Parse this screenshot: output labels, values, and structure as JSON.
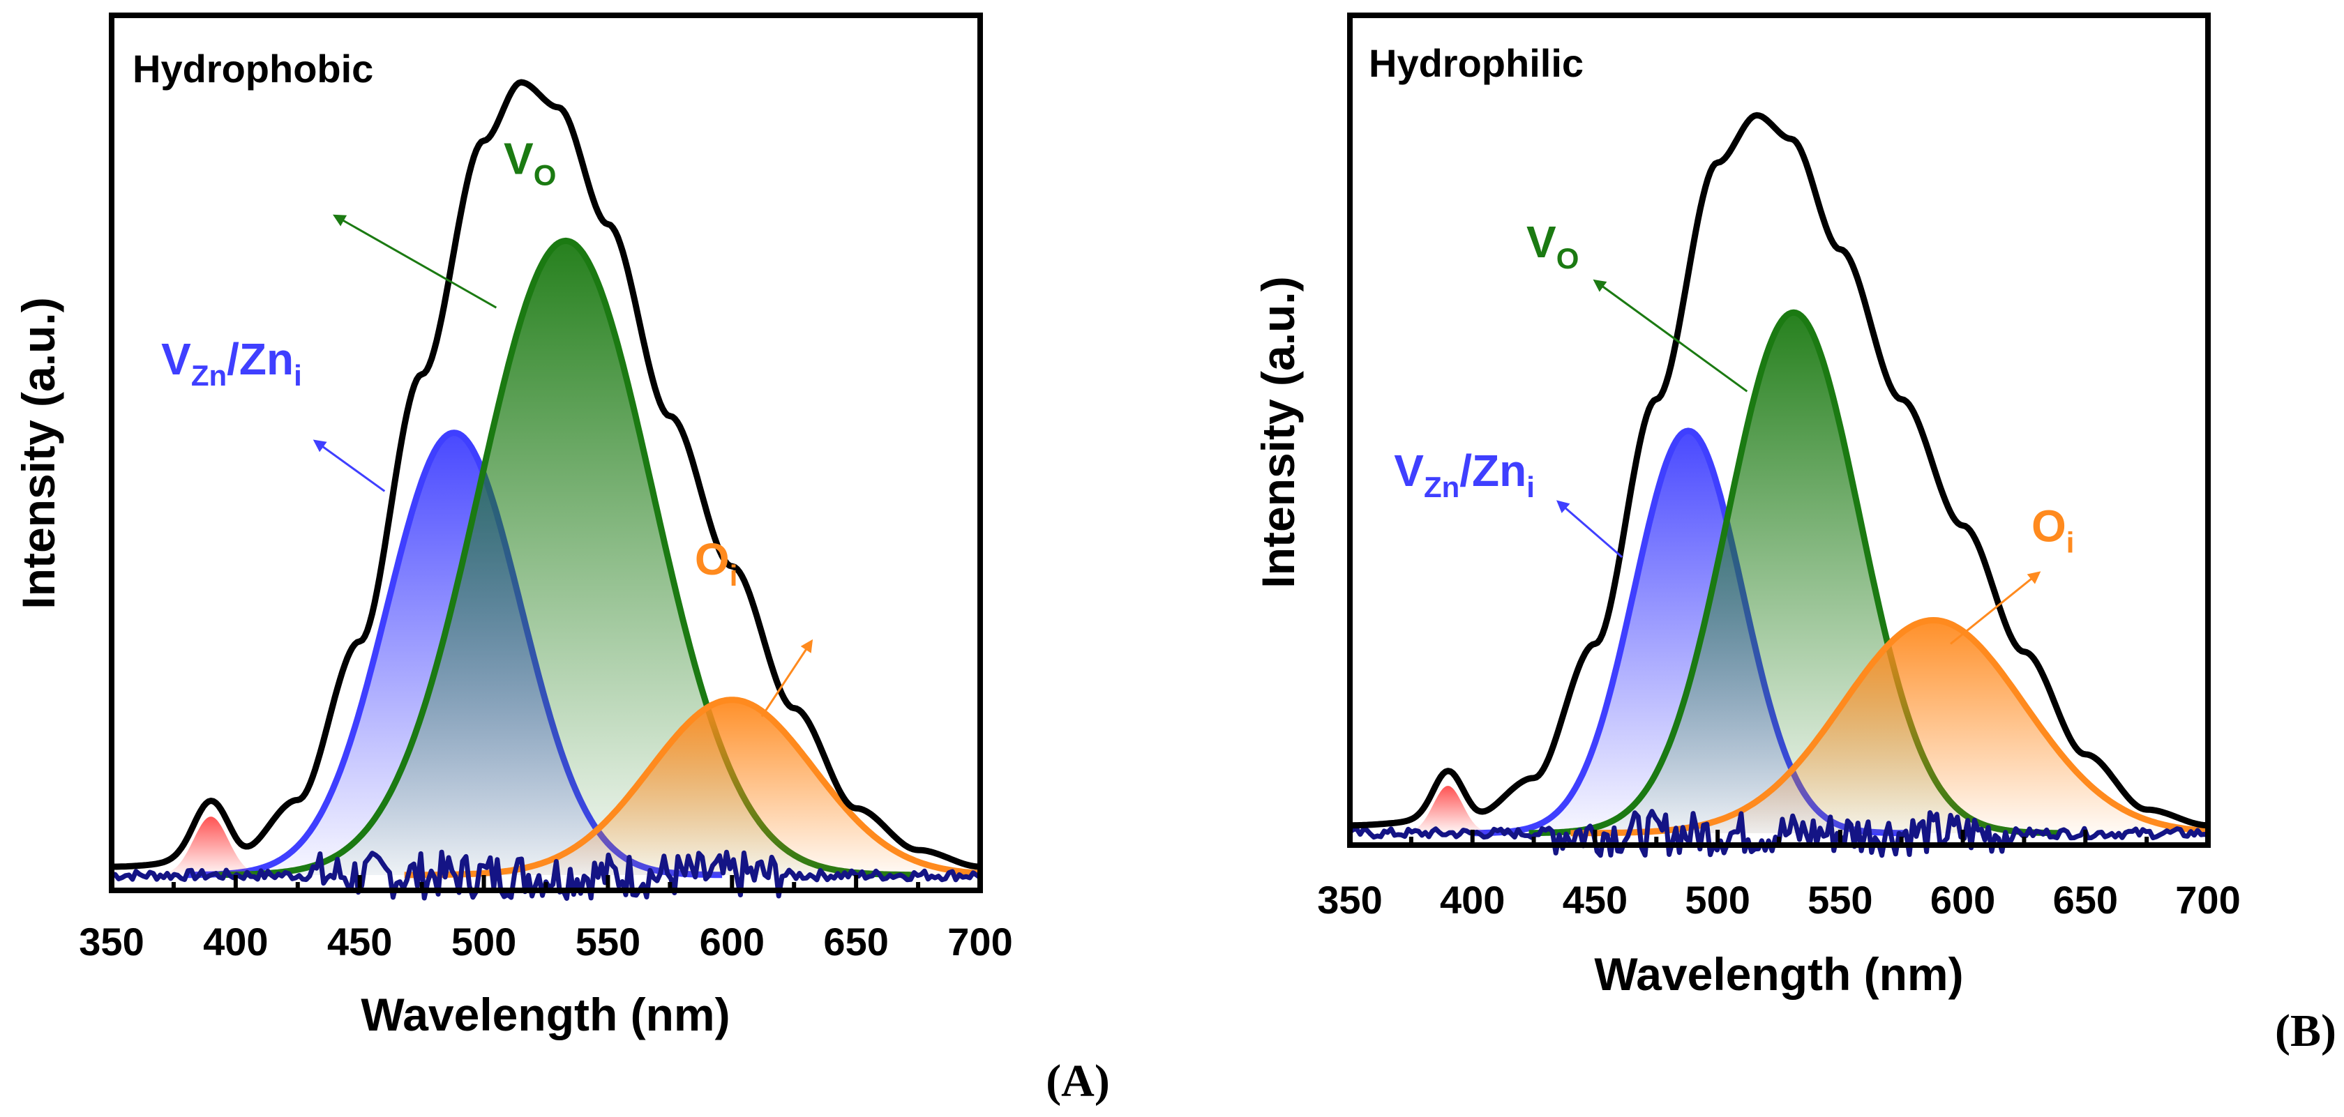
{
  "chart_data": [
    {
      "type": "line",
      "panel_label": "(A)",
      "title": "Hydrophobic",
      "xlabel": "Wavelength (nm)",
      "ylabel": "Intensity (a.u.)",
      "xlim": [
        350,
        700
      ],
      "ylim": [
        0,
        1.0
      ],
      "x_ticks": [
        "350",
        "400",
        "450",
        "500",
        "550",
        "600",
        "650",
        "700"
      ],
      "y_ticks": [],
      "series": [
        {
          "name": "Total PL",
          "color": "#000000",
          "kind": "measured_envelope",
          "uv_peak": {
            "center": 390,
            "height": 0.07,
            "width_sigma": 7
          },
          "x": [
            350,
            400,
            425,
            450,
            475,
            500,
            515,
            530,
            550,
            575,
            600,
            625,
            650,
            675,
            700
          ],
          "values": [
            0.01,
            0.02,
            0.09,
            0.28,
            0.6,
            0.88,
            0.95,
            0.92,
            0.78,
            0.55,
            0.37,
            0.2,
            0.08,
            0.03,
            0.01
          ]
        },
        {
          "name": "VZn/Zni",
          "color": "#3f3fff",
          "gauss": {
            "center": 488,
            "height": 0.53,
            "sigma": 27
          }
        },
        {
          "name": "VO",
          "color": "#1b7a12",
          "gauss": {
            "center": 533,
            "height": 0.76,
            "sigma": 35
          }
        },
        {
          "name": "Oi",
          "color": "#ff8a1e",
          "gauss": {
            "center": 600,
            "height": 0.21,
            "sigma": 33
          }
        },
        {
          "name": "Baseline noise",
          "color": "#141485",
          "kind": "noise",
          "level": 0.0
        }
      ],
      "annotations": [
        {
          "id": "vo",
          "base": "V",
          "sub": "O",
          "suffix": "",
          "suffix_sub": "",
          "color": "#1b7a12",
          "text_x": 508,
          "text_y": 0.84,
          "arrow_from": [
            505,
            0.68
          ],
          "arrow_to": [
            440,
            0.79
          ]
        },
        {
          "id": "vzn",
          "base": "V",
          "sub": "Zn",
          "suffix": "/Zn",
          "suffix_sub": "i",
          "color": "#3f3fff",
          "text_x": 370,
          "text_y": 0.6,
          "arrow_from": [
            460,
            0.46
          ],
          "arrow_to": [
            432,
            0.52
          ]
        },
        {
          "id": "oi",
          "base": "O",
          "sub": "i",
          "suffix": "",
          "suffix_sub": "",
          "color": "#ff8a1e",
          "text_x": 585,
          "text_y": 0.36,
          "arrow_from": [
            612,
            0.19
          ],
          "arrow_to": [
            632,
            0.28
          ]
        }
      ]
    },
    {
      "type": "line",
      "panel_label": "(B)",
      "title": "Hydrophilic",
      "xlabel": "Wavelength (nm)",
      "ylabel": "Intensity (a.u.)",
      "xlim": [
        350,
        700
      ],
      "ylim": [
        0,
        1.0
      ],
      "x_ticks": [
        "350",
        "400",
        "450",
        "500",
        "550",
        "600",
        "650",
        "700"
      ],
      "y_ticks": [],
      "series": [
        {
          "name": "Total PL",
          "color": "#000000",
          "kind": "measured_envelope",
          "uv_peak": {
            "center": 390,
            "height": 0.06,
            "width_sigma": 6
          },
          "x": [
            350,
            400,
            425,
            450,
            475,
            500,
            516,
            530,
            550,
            575,
            600,
            625,
            650,
            675,
            700
          ],
          "values": [
            0.01,
            0.02,
            0.07,
            0.24,
            0.55,
            0.85,
            0.91,
            0.88,
            0.74,
            0.55,
            0.39,
            0.23,
            0.1,
            0.03,
            0.01
          ]
        },
        {
          "name": "VZn/Zni",
          "color": "#3f3fff",
          "gauss": {
            "center": 488,
            "height": 0.51,
            "sigma": 22
          }
        },
        {
          "name": "VO",
          "color": "#1b7a12",
          "gauss": {
            "center": 531,
            "height": 0.66,
            "sigma": 27
          }
        },
        {
          "name": "Oi",
          "color": "#ff8a1e",
          "gauss": {
            "center": 588,
            "height": 0.27,
            "sigma": 37
          }
        },
        {
          "name": "Baseline noise",
          "color": "#141485",
          "kind": "noise",
          "level": 0.0
        }
      ],
      "annotations": [
        {
          "id": "vo",
          "base": "V",
          "sub": "O",
          "suffix": "",
          "suffix_sub": "",
          "color": "#1b7a12",
          "text_x": 422,
          "text_y": 0.73,
          "arrow_from": [
            512,
            0.56
          ],
          "arrow_to": [
            450,
            0.7
          ]
        },
        {
          "id": "vzn",
          "base": "V",
          "sub": "Zn",
          "suffix": "/Zn",
          "suffix_sub": "i",
          "color": "#3f3fff",
          "text_x": 368,
          "text_y": 0.44,
          "arrow_from": [
            461,
            0.35
          ],
          "arrow_to": [
            435,
            0.42
          ]
        },
        {
          "id": "oi",
          "base": "O",
          "sub": "i",
          "suffix": "",
          "suffix_sub": "",
          "color": "#ff8a1e",
          "text_x": 628,
          "text_y": 0.37,
          "arrow_from": [
            595,
            0.24
          ],
          "arrow_to": [
            631,
            0.33
          ]
        }
      ]
    }
  ]
}
